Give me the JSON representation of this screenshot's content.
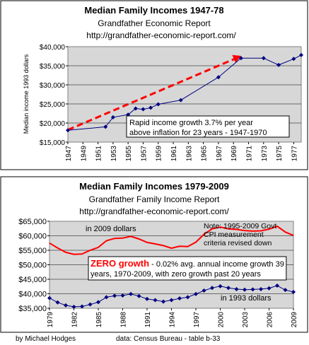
{
  "chart_data": [
    {
      "type": "line",
      "title": "Median Family Incomes 1947-78",
      "subtitle": "Grandfather Economic Report",
      "url": "http://grandfather-economic-report.com/",
      "ylabel": "Median income 1993 dollars",
      "xlabel": "",
      "ylim": [
        15000,
        40000
      ],
      "xlim": [
        1947,
        1978
      ],
      "grid": true,
      "x_ticks": [
        "1947",
        "1949",
        "1951",
        "1953",
        "1955",
        "1957",
        "1959",
        "1961",
        "1963",
        "1965",
        "1967",
        "1969",
        "1971",
        "1973",
        "1975",
        "1977"
      ],
      "y_ticks": [
        "$15,000",
        "$20,000",
        "$25,000",
        "$30,000",
        "$35,000",
        "$40,000"
      ],
      "series": [
        {
          "values": [
            {
              "x": 1947,
              "y": 18100
            },
            {
              "x": 1952,
              "y": 19000
            },
            {
              "x": 1953,
              "y": 21500
            },
            {
              "x": 1955,
              "y": 22200
            },
            {
              "x": 1956,
              "y": 23800
            },
            {
              "x": 1957,
              "y": 23600
            },
            {
              "x": 1958,
              "y": 24000
            },
            {
              "x": 1959,
              "y": 24900
            },
            {
              "x": 1962,
              "y": 26000
            },
            {
              "x": 1967,
              "y": 32000
            },
            {
              "x": 1970,
              "y": 37000
            },
            {
              "x": 1973,
              "y": 37000
            },
            {
              "x": 1975,
              "y": 35200
            },
            {
              "x": 1977,
              "y": 36800
            },
            {
              "x": 1978,
              "y": 37800
            }
          ],
          "color": "#000080"
        }
      ],
      "trend_arrow": {
        "from": {
          "x": 1947,
          "y": 18200
        },
        "to": {
          "x": 1970,
          "y": 37600
        },
        "color": "#ff0000"
      },
      "annotation": "Rapid income growth 3.7% per year\nabove inflation for 23 years   - 1947-1970"
    },
    {
      "type": "line",
      "title": "Median Family Incomes 1979-2009",
      "subtitle": "Grandfather Family Income Report",
      "url": "http://grandfather-economic-report.com/",
      "ylabel": "",
      "xlabel": "",
      "ylim": [
        35000,
        65000
      ],
      "xlim": [
        1979,
        2009
      ],
      "grid": true,
      "x_ticks": [
        "1979",
        "1982",
        "1985",
        "1988",
        "1991",
        "1994",
        "1997",
        "2000",
        "2003",
        "2006",
        "2009"
      ],
      "y_ticks": [
        "$35,000",
        "$40,000",
        "$45,000",
        "$50,000",
        "$55,000",
        "$60,000",
        "$65,000"
      ],
      "series": [
        {
          "name": "in 2009 dollars",
          "values": [
            {
              "x": 1979,
              "y": 57500
            },
            {
              "x": 1980,
              "y": 55800
            },
            {
              "x": 1981,
              "y": 54300
            },
            {
              "x": 1982,
              "y": 53600
            },
            {
              "x": 1983,
              "y": 53700
            },
            {
              "x": 1984,
              "y": 55000
            },
            {
              "x": 1985,
              "y": 56000
            },
            {
              "x": 1986,
              "y": 58300
            },
            {
              "x": 1987,
              "y": 59100
            },
            {
              "x": 1988,
              "y": 59200
            },
            {
              "x": 1989,
              "y": 59800
            },
            {
              "x": 1990,
              "y": 58900
            },
            {
              "x": 1991,
              "y": 57700
            },
            {
              "x": 1992,
              "y": 57200
            },
            {
              "x": 1993,
              "y": 56600
            },
            {
              "x": 1994,
              "y": 55700
            },
            {
              "x": 1995,
              "y": 56400
            },
            {
              "x": 1996,
              "y": 56300
            },
            {
              "x": 1997,
              "y": 57800
            },
            {
              "x": 1998,
              "y": 60500
            },
            {
              "x": 1999,
              "y": 62400
            },
            {
              "x": 2000,
              "y": 63000
            },
            {
              "x": 2001,
              "y": 62400
            },
            {
              "x": 2002,
              "y": 62200
            },
            {
              "x": 2003,
              "y": 61800
            },
            {
              "x": 2004,
              "y": 61600
            },
            {
              "x": 2005,
              "y": 61700
            },
            {
              "x": 2006,
              "y": 62300
            },
            {
              "x": 2007,
              "y": 63300
            },
            {
              "x": 2008,
              "y": 61300
            },
            {
              "x": 2009,
              "y": 60100
            }
          ],
          "color": "#ff0000"
        },
        {
          "name": "in 1993 dollars",
          "values": [
            {
              "x": 1979,
              "y": 38500
            },
            {
              "x": 1980,
              "y": 37000
            },
            {
              "x": 1981,
              "y": 36000
            },
            {
              "x": 1982,
              "y": 35500
            },
            {
              "x": 1983,
              "y": 35600
            },
            {
              "x": 1984,
              "y": 36300
            },
            {
              "x": 1985,
              "y": 37100
            },
            {
              "x": 1986,
              "y": 38800
            },
            {
              "x": 1987,
              "y": 39300
            },
            {
              "x": 1988,
              "y": 39400
            },
            {
              "x": 1989,
              "y": 39900
            },
            {
              "x": 1990,
              "y": 39200
            },
            {
              "x": 1991,
              "y": 38200
            },
            {
              "x": 1992,
              "y": 37800
            },
            {
              "x": 1993,
              "y": 37300
            },
            {
              "x": 1994,
              "y": 37800
            },
            {
              "x": 1995,
              "y": 38400
            },
            {
              "x": 1996,
              "y": 38800
            },
            {
              "x": 1997,
              "y": 39900
            },
            {
              "x": 1998,
              "y": 41100
            },
            {
              "x": 1999,
              "y": 42000
            },
            {
              "x": 2000,
              "y": 42600
            },
            {
              "x": 2001,
              "y": 42000
            },
            {
              "x": 2002,
              "y": 41600
            },
            {
              "x": 2003,
              "y": 41400
            },
            {
              "x": 2004,
              "y": 41500
            },
            {
              "x": 2005,
              "y": 41600
            },
            {
              "x": 2006,
              "y": 41900
            },
            {
              "x": 2007,
              "y": 42800
            },
            {
              "x": 2008,
              "y": 41300
            },
            {
              "x": 2009,
              "y": 40600
            }
          ],
          "color": "#000080"
        }
      ],
      "note": "Note: 1995-2009 Govt\nCPI measurement\ncriteria revised down",
      "zero_growth_label": "ZERO growth",
      "zero_growth_text": " - 0.02% avg. annual income growth 39\nyears, 1970-2009, with zero growth past 20 years"
    }
  ],
  "footer": {
    "author": "by Michael Hodges",
    "source": "data: Census Bureau - table b-33"
  }
}
